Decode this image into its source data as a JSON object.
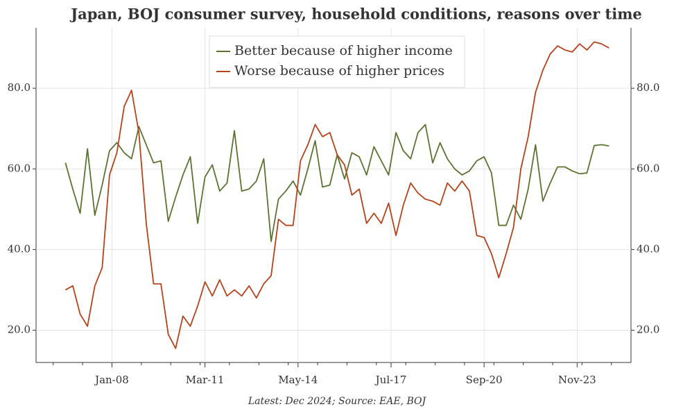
{
  "chart_data": {
    "type": "line",
    "title": "Japan, BOJ consumer survey, household conditions, reasons over time",
    "footnote": "Latest: Dec 2024; Source: EAE, BOJ",
    "x": [
      "2006-06",
      "2006-09",
      "2006-12",
      "2007-03",
      "2007-06",
      "2007-09",
      "2007-12",
      "2008-03",
      "2008-06",
      "2008-09",
      "2008-12",
      "2009-03",
      "2009-06",
      "2009-09",
      "2009-12",
      "2010-03",
      "2010-06",
      "2010-09",
      "2010-12",
      "2011-03",
      "2011-06",
      "2011-09",
      "2011-12",
      "2012-03",
      "2012-06",
      "2012-09",
      "2012-12",
      "2013-03",
      "2013-06",
      "2013-09",
      "2013-12",
      "2014-03",
      "2014-06",
      "2014-09",
      "2014-12",
      "2015-03",
      "2015-06",
      "2015-09",
      "2015-12",
      "2016-03",
      "2016-06",
      "2016-09",
      "2016-12",
      "2017-03",
      "2017-06",
      "2017-09",
      "2017-12",
      "2018-03",
      "2018-06",
      "2018-09",
      "2018-12",
      "2019-03",
      "2019-06",
      "2019-09",
      "2019-12",
      "2020-03",
      "2020-06",
      "2020-09",
      "2020-12",
      "2021-03",
      "2021-06",
      "2021-09",
      "2021-12",
      "2022-03",
      "2022-06",
      "2022-09",
      "2022-12",
      "2023-03",
      "2023-06",
      "2023-09",
      "2023-12",
      "2024-03",
      "2024-06",
      "2024-09",
      "2024-12"
    ],
    "series": [
      {
        "name": "Better because of higher income",
        "color": "#5b7330",
        "values": [
          61.5,
          55,
          49,
          65,
          48.5,
          56,
          64.5,
          66.5,
          64,
          62.5,
          70.5,
          66,
          61.5,
          62,
          47,
          53,
          58.5,
          63,
          46.5,
          58,
          61,
          54.5,
          56.5,
          69.5,
          54.5,
          55,
          57,
          62.5,
          42,
          52.5,
          54.5,
          57,
          53.5,
          60,
          67,
          55.5,
          56,
          63.5,
          57.5,
          64,
          63,
          58.5,
          65.5,
          62,
          58.5,
          69,
          64.5,
          62.5,
          69,
          71,
          61.5,
          66.5,
          62.5,
          60,
          58.5,
          59.5,
          62,
          63,
          59,
          46,
          46,
          51,
          47.5,
          55,
          66,
          52,
          56.5,
          60.5,
          60.5,
          59.5,
          58.8,
          59,
          65.8,
          66,
          65.7
        ]
      },
      {
        "name": "Worse because of higher prices",
        "color": "#b5421a",
        "values": [
          30,
          31,
          24,
          21,
          31,
          35.5,
          58.5,
          64,
          75.5,
          79.5,
          69,
          46.5,
          31.5,
          31.5,
          19,
          15.5,
          23.5,
          21,
          26,
          32,
          28.5,
          32.5,
          28.5,
          30,
          28.5,
          31,
          28,
          31.5,
          33.5,
          47.5,
          46,
          46,
          62,
          66,
          71,
          68,
          69,
          63.5,
          61,
          53.5,
          55,
          46.5,
          49,
          46.5,
          51.5,
          43.5,
          51,
          56.5,
          54,
          52.5,
          52,
          51,
          56.5,
          54.5,
          57,
          54.5,
          43.5,
          43,
          39,
          33,
          39,
          45.5,
          60,
          68,
          79,
          84.5,
          88.5,
          90.5,
          89.5,
          89,
          91,
          89.5,
          91.5,
          91,
          90
        ]
      }
    ],
    "xlim": [
      "2005-06",
      "2025-09"
    ],
    "xticks": [
      {
        "value": "2008-01",
        "label": "Jan-08"
      },
      {
        "value": "2011-03",
        "label": "Mar-11"
      },
      {
        "value": "2014-05",
        "label": "May-14"
      },
      {
        "value": "2017-07",
        "label": "Jul-17"
      },
      {
        "value": "2020-09",
        "label": "Sep-20"
      },
      {
        "value": "2023-11",
        "label": "Nov-23"
      }
    ],
    "ylim": [
      12,
      95
    ],
    "yticks": [
      {
        "value": 20,
        "label": "20.0"
      },
      {
        "value": 40,
        "label": "40.0"
      },
      {
        "value": 60,
        "label": "60.0"
      },
      {
        "value": 80,
        "label": "80.0"
      }
    ],
    "grid": true,
    "legend": "top"
  }
}
